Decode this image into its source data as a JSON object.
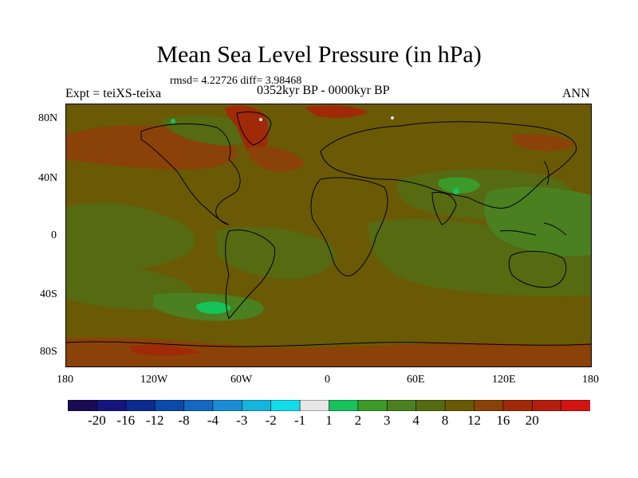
{
  "title": "Mean Sea Level Pressure (in hPa)",
  "stats_text": "rmsd= 4.22726 diff= 3.98468",
  "left_label": "Expt = teiXS-teixa",
  "center_label": "0352kyr BP - 0000kyr BP",
  "right_label": "ANN",
  "lat_labels": [
    "80N",
    "40N",
    "0",
    "40S",
    "80S"
  ],
  "lon_labels": [
    "180",
    "120W",
    "60W",
    "0",
    "60E",
    "120E",
    "180"
  ],
  "colorbar": {
    "colors": [
      "#1a0b55",
      "#14157d",
      "#0a2a8e",
      "#0a4aa8",
      "#1468c0",
      "#1a8ed4",
      "#14b4dc",
      "#10dcea",
      "#e6e6e6",
      "#16c25a",
      "#3c9a28",
      "#4a8020",
      "#566a12",
      "#6a5a06",
      "#8a4208",
      "#a02a08",
      "#b41e0c",
      "#d41410"
    ],
    "labels": [
      "-20",
      "-16",
      "-12",
      "-8",
      "-4",
      "-3",
      "-2",
      "-1",
      "1",
      "2",
      "3",
      "4",
      "8",
      "12",
      "16",
      "20"
    ]
  },
  "map_colors": {
    "ocean_base": "#6a5a06",
    "green_mid": "#566a12",
    "green_light": "#4a8020",
    "green_bright": "#3c9a28",
    "green_vivid": "#16c25a",
    "brown_warm": "#8a4208",
    "red_strong": "#a02a08"
  }
}
